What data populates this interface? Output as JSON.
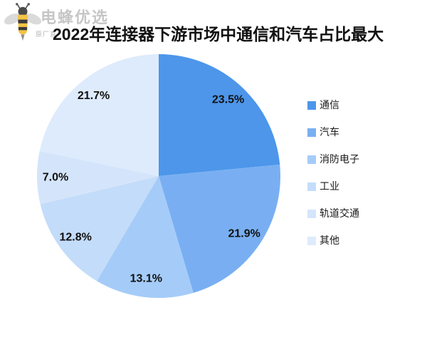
{
  "page": {
    "background": "#ffffff"
  },
  "logo": {
    "icon": "bee-icon",
    "brand": "电蜂优选",
    "tagline": "原厂直",
    "brand_color": "#c6c6c6"
  },
  "title": "2022年连接器下游市场中通信和汽车占比最大",
  "chart_data": {
    "type": "pie",
    "title": "2022年连接器下游市场中通信和汽车占比最大",
    "unit": "%",
    "start_angle_deg": 0,
    "direction": "clockwise",
    "legend_position": "right",
    "label_format": "{value}%",
    "series": [
      {
        "label": "通信",
        "value": 23.5,
        "color": "#4D96EA"
      },
      {
        "label": "汽车",
        "value": 21.9,
        "color": "#79AFF2"
      },
      {
        "label": "消防电子",
        "value": 13.1,
        "color": "#A5CCF8"
      },
      {
        "label": "工业",
        "value": 12.8,
        "color": "#C3DCFA"
      },
      {
        "label": "轨道交通",
        "value": 7.0,
        "color": "#D4E5FB"
      },
      {
        "label": "其他",
        "value": 21.7,
        "color": "#DEEBFC"
      }
    ]
  }
}
